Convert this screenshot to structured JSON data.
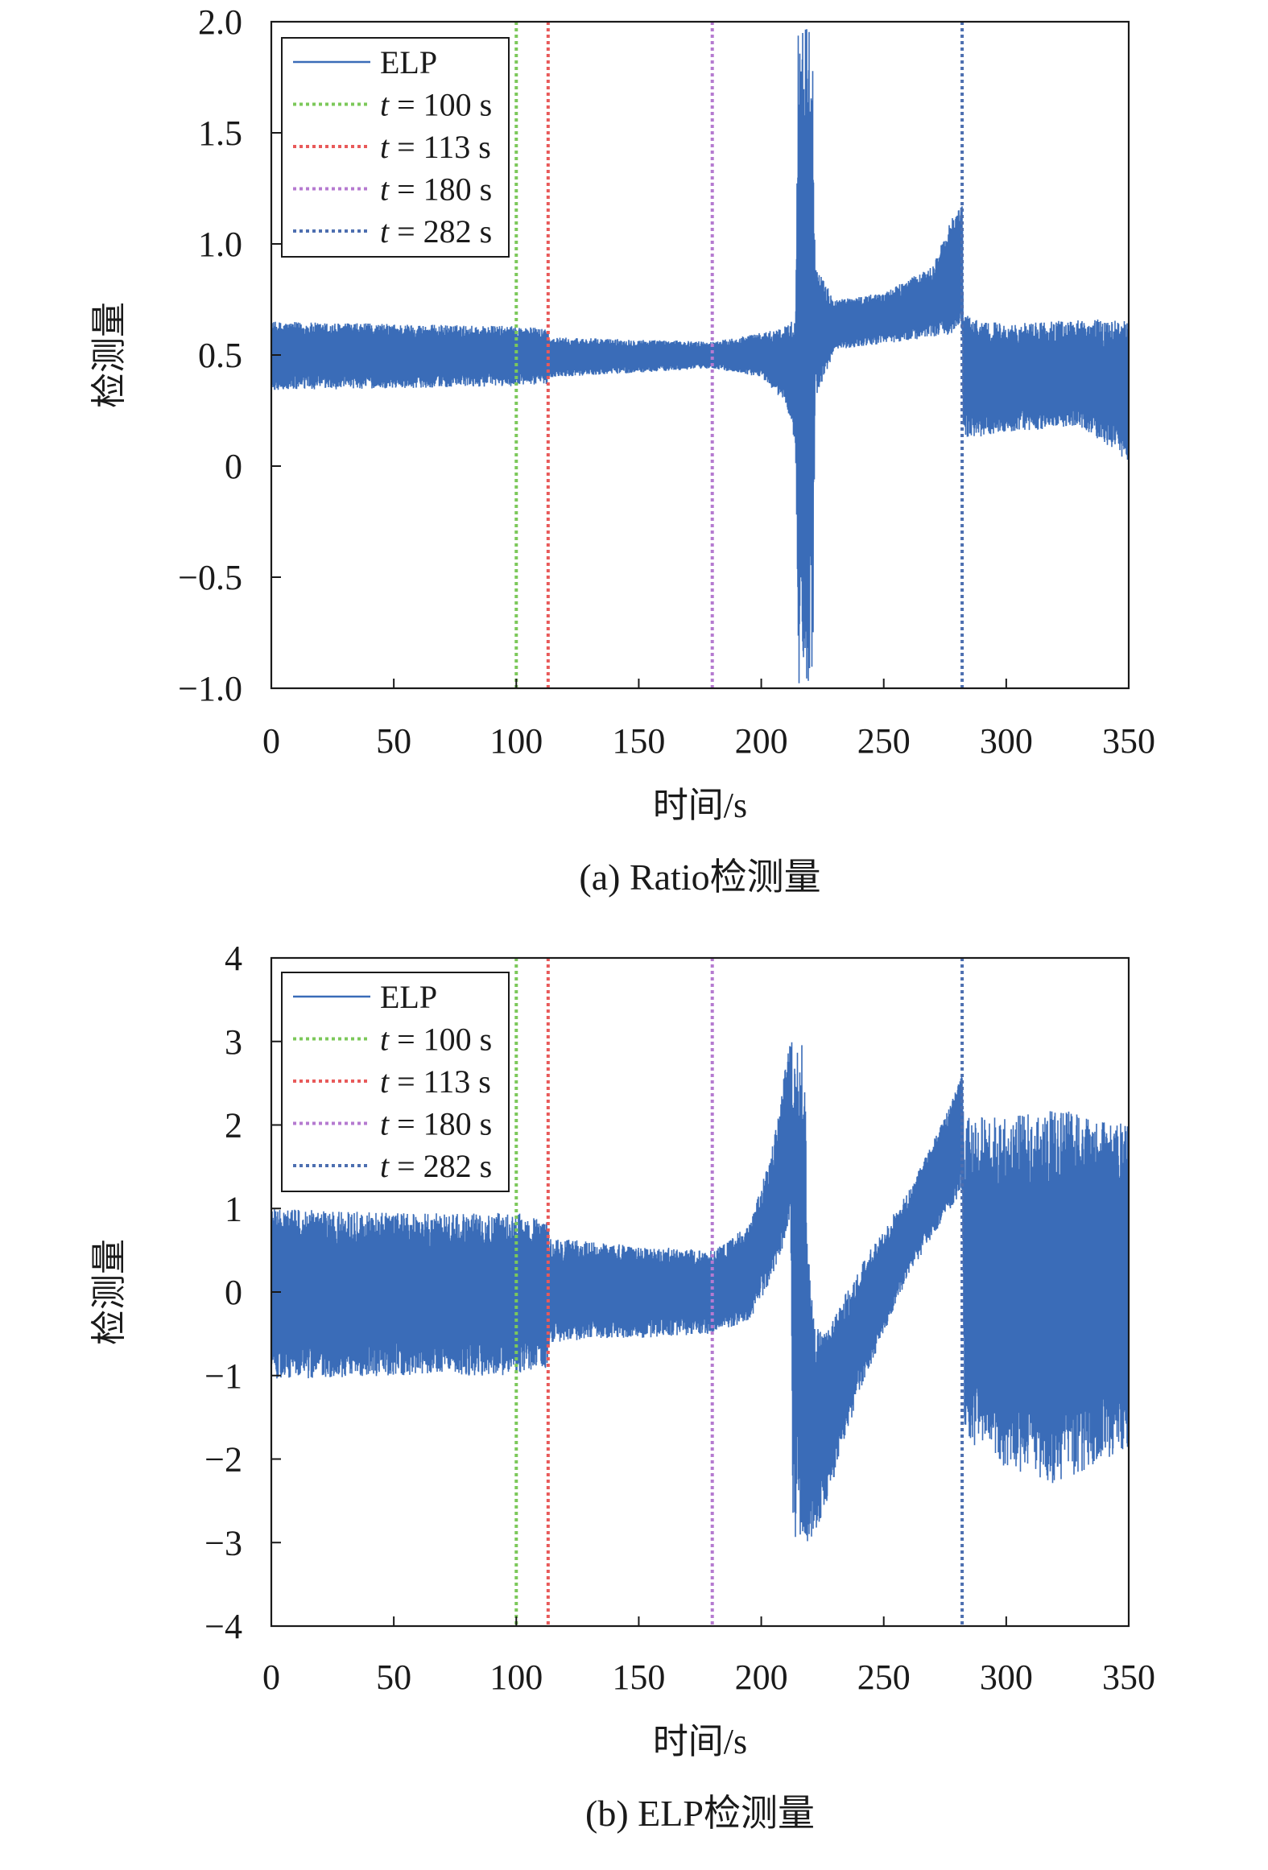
{
  "chart_data": [
    {
      "type": "line",
      "caption": "(a) Ratio检测量",
      "xlabel": "时间/s",
      "ylabel": "检测量",
      "xlim": [
        0,
        350
      ],
      "ylim": [
        -1.0,
        2.0
      ],
      "xticks": [
        0,
        50,
        100,
        150,
        200,
        250,
        300,
        350
      ],
      "xtick_labels": [
        "0",
        "50",
        "100",
        "150",
        "200",
        "250",
        "300",
        "350"
      ],
      "yticks": [
        2.0,
        1.5,
        1.0,
        0.5,
        0,
        -0.5,
        -1.0
      ],
      "ytick_labels": [
        "2.0",
        "1.5",
        "1.0",
        "0.5",
        "0",
        "−0.5",
        "−1.0"
      ],
      "grid": false,
      "legend_position": "top-left",
      "series": [
        {
          "name": "ELP",
          "color": "#3a6cb8",
          "style": "solid",
          "envelope_upper": [
            [
              0,
              0.65
            ],
            [
              50,
              0.64
            ],
            [
              100,
              0.63
            ],
            [
              113,
              0.62
            ],
            [
              113.5,
              0.58
            ],
            [
              150,
              0.57
            ],
            [
              180,
              0.56
            ],
            [
              200,
              0.6
            ],
            [
              210,
              0.63
            ],
            [
              214,
              0.68
            ],
            [
              215,
              2.0
            ],
            [
              221,
              2.0
            ],
            [
              222,
              0.9
            ],
            [
              230,
              0.75
            ],
            [
              250,
              0.78
            ],
            [
              270,
              0.9
            ],
            [
              282,
              1.23
            ],
            [
              282.5,
              0.68
            ],
            [
              300,
              0.64
            ],
            [
              330,
              0.66
            ],
            [
              350,
              0.66
            ]
          ],
          "envelope_lower": [
            [
              0,
              0.34
            ],
            [
              50,
              0.35
            ],
            [
              100,
              0.36
            ],
            [
              113,
              0.37
            ],
            [
              113.5,
              0.4
            ],
            [
              150,
              0.42
            ],
            [
              180,
              0.44
            ],
            [
              200,
              0.4
            ],
            [
              210,
              0.28
            ],
            [
              214,
              0.1
            ],
            [
              215,
              -1.0
            ],
            [
              221,
              -1.0
            ],
            [
              222,
              0.3
            ],
            [
              230,
              0.52
            ],
            [
              250,
              0.55
            ],
            [
              270,
              0.58
            ],
            [
              282,
              0.6
            ],
            [
              282.5,
              0.12
            ],
            [
              300,
              0.15
            ],
            [
              330,
              0.18
            ],
            [
              350,
              0.02
            ]
          ]
        },
        {
          "name": "t = 100 s",
          "legend_italic": "t",
          "legend_rest": " = 100 s",
          "color": "#7cc85a",
          "style": "dotted",
          "x": 100
        },
        {
          "name": "t = 113 s",
          "legend_italic": "t",
          "legend_rest": " = 113 s",
          "color": "#e85a5a",
          "style": "dotted",
          "x": 113
        },
        {
          "name": "t = 180 s",
          "legend_italic": "t",
          "legend_rest": " = 180 s",
          "color": "#b57ad0",
          "style": "dotted",
          "x": 180
        },
        {
          "name": "t = 282 s",
          "legend_italic": "t",
          "legend_rest": " = 282 s",
          "color": "#4d6fb0",
          "style": "dotted",
          "x": 282
        }
      ]
    },
    {
      "type": "line",
      "caption": "(b) ELP检测量",
      "xlabel": "时间/s",
      "ylabel": "检测量",
      "xlim": [
        0,
        350
      ],
      "ylim": [
        -4,
        4
      ],
      "xticks": [
        0,
        50,
        100,
        150,
        200,
        250,
        300,
        350
      ],
      "xtick_labels": [
        "0",
        "50",
        "100",
        "150",
        "200",
        "250",
        "300",
        "350"
      ],
      "yticks": [
        4,
        3,
        2,
        1,
        0,
        -1,
        -2,
        -3,
        -4
      ],
      "ytick_labels": [
        "4",
        "3",
        "2",
        "1",
        "0",
        "−1",
        "−2",
        "−3",
        "−4"
      ],
      "grid": false,
      "legend_position": "top-left",
      "series": [
        {
          "name": "ELP",
          "color": "#3a6cb8",
          "style": "solid",
          "envelope_upper": [
            [
              0,
              1.0
            ],
            [
              50,
              0.95
            ],
            [
              100,
              0.95
            ],
            [
              113,
              0.85
            ],
            [
              113.5,
              0.65
            ],
            [
              150,
              0.55
            ],
            [
              180,
              0.5
            ],
            [
              195,
              0.8
            ],
            [
              205,
              1.8
            ],
            [
              212,
              3.1
            ],
            [
              217,
              3.0
            ],
            [
              218,
              2.5
            ],
            [
              219,
              0.5
            ],
            [
              222,
              -0.4
            ],
            [
              226,
              -0.5
            ],
            [
              240,
              0.3
            ],
            [
              260,
              1.2
            ],
            [
              275,
              2.1
            ],
            [
              282,
              2.6
            ],
            [
              283,
              2.1
            ],
            [
              300,
              2.1
            ],
            [
              320,
              2.2
            ],
            [
              350,
              2.0
            ]
          ],
          "envelope_lower": [
            [
              0,
              -1.05
            ],
            [
              50,
              -1.0
            ],
            [
              100,
              -1.0
            ],
            [
              113,
              -0.9
            ],
            [
              113.5,
              -0.6
            ],
            [
              150,
              -0.55
            ],
            [
              180,
              -0.5
            ],
            [
              195,
              -0.35
            ],
            [
              205,
              0.2
            ],
            [
              212,
              0.8
            ],
            [
              213,
              -3.0
            ],
            [
              220,
              -3.0
            ],
            [
              226,
              -2.6
            ],
            [
              240,
              -1.2
            ],
            [
              260,
              0.2
            ],
            [
              275,
              0.9
            ],
            [
              282,
              1.2
            ],
            [
              283,
              -1.8
            ],
            [
              300,
              -2.1
            ],
            [
              320,
              -2.3
            ],
            [
              350,
              -1.9
            ]
          ]
        },
        {
          "name": "t = 100 s",
          "legend_italic": "t",
          "legend_rest": " = 100 s",
          "color": "#7cc85a",
          "style": "dotted",
          "x": 100
        },
        {
          "name": "t = 113 s",
          "legend_italic": "t",
          "legend_rest": " = 113 s",
          "color": "#e85a5a",
          "style": "dotted",
          "x": 113
        },
        {
          "name": "t = 180 s",
          "legend_italic": "t",
          "legend_rest": " = 180 s",
          "color": "#b57ad0",
          "style": "dotted",
          "x": 180
        },
        {
          "name": "t = 282 s",
          "legend_italic": "t",
          "legend_rest": " = 282 s",
          "color": "#4d6fb0",
          "style": "dotted",
          "x": 282
        }
      ]
    }
  ]
}
